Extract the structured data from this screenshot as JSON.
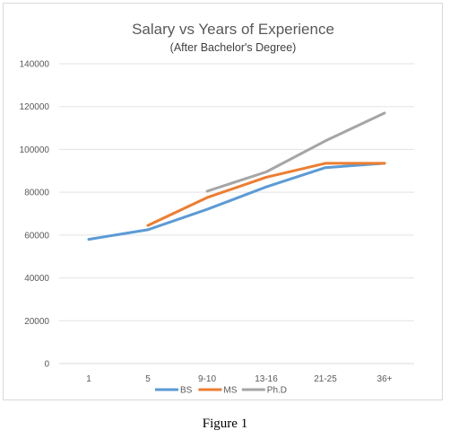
{
  "chart_data": {
    "type": "line",
    "title": "Salary vs Years of Experience",
    "subtitle": "(After Bachelor's Degree)",
    "xlabel": "",
    "ylabel": "",
    "categories": [
      "1",
      "5",
      "9-10",
      "13-16",
      "21-25",
      "36+"
    ],
    "ylim": [
      0,
      140000
    ],
    "yticks": [
      0,
      20000,
      40000,
      60000,
      80000,
      100000,
      120000,
      140000
    ],
    "grid": true,
    "legend": "bottom",
    "series": [
      {
        "name": "BS",
        "color": "#5b9bd5",
        "values": [
          58000,
          62500,
          72000,
          82500,
          91500,
          93500
        ]
      },
      {
        "name": "MS",
        "color": "#ed7d31",
        "values": [
          null,
          64500,
          77500,
          87000,
          93500,
          93500
        ]
      },
      {
        "name": "Ph.D",
        "color": "#a5a5a5",
        "values": [
          null,
          null,
          80500,
          89500,
          104000,
          117000
        ]
      }
    ]
  },
  "caption": "Figure 1"
}
